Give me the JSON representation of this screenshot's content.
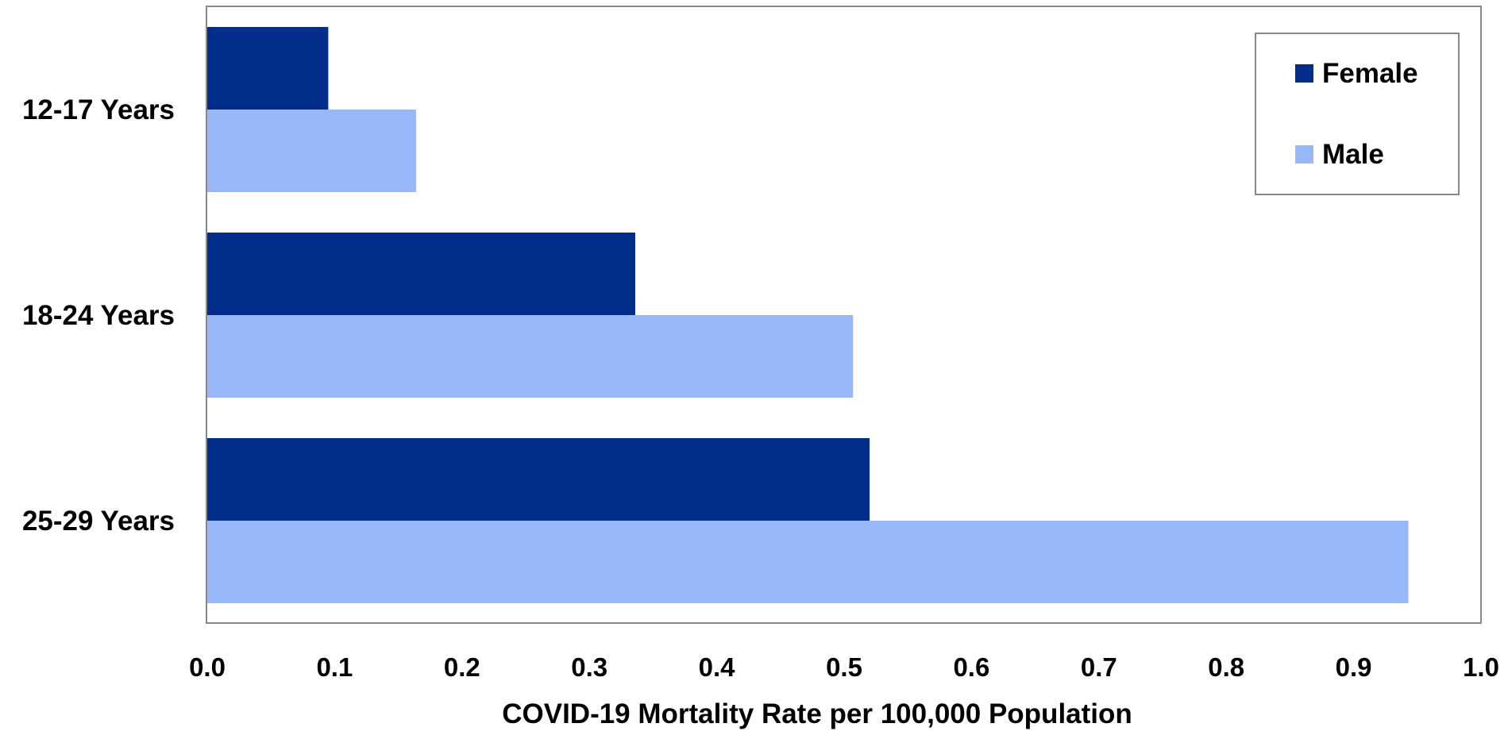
{
  "chart_data": {
    "type": "bar",
    "orientation": "horizontal",
    "categories": [
      "12-17 Years",
      "18-24 Years",
      "25-29 Years"
    ],
    "series": [
      {
        "name": "Female",
        "color": "#002D8A",
        "values": [
          0.095,
          0.336,
          0.52
        ]
      },
      {
        "name": "Male",
        "color": "#99B8FC",
        "values": [
          0.164,
          0.507,
          0.943
        ]
      }
    ],
    "xlabel": "COVID-19 Mortality Rate per 100,000 Population",
    "ylabel": "",
    "xlim": [
      0,
      1.0
    ],
    "xticks": [
      "0.0",
      "0.1",
      "0.2",
      "0.3",
      "0.4",
      "0.5",
      "0.6",
      "0.7",
      "0.8",
      "0.9",
      "1.0"
    ],
    "grid": false,
    "legend": {
      "position": "top-right",
      "entries": [
        "Female",
        "Male"
      ]
    }
  }
}
